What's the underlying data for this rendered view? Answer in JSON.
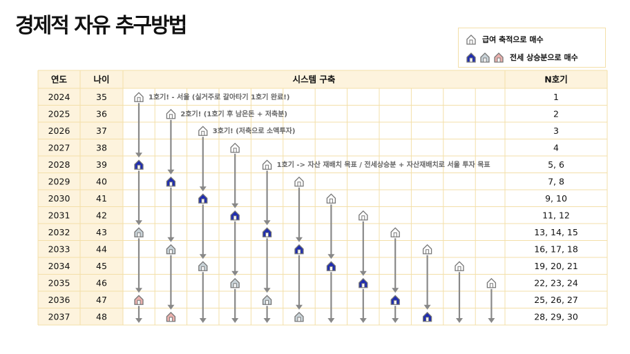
{
  "title": "경제적 자유 추구방법",
  "legend": {
    "salary_label": "급여 축적으로 매수",
    "equity_label": "전세 상승분으로 매수"
  },
  "table": {
    "headers": {
      "year": "연도",
      "age": "나이",
      "system": "시스템 구축",
      "count": "N호기"
    },
    "rows": [
      {
        "year": "2024",
        "age": "35",
        "count": "1"
      },
      {
        "year": "2025",
        "age": "36",
        "count": "2"
      },
      {
        "year": "2026",
        "age": "37",
        "count": "3"
      },
      {
        "year": "2027",
        "age": "38",
        "count": "4"
      },
      {
        "year": "2028",
        "age": "39",
        "count": "5, 6"
      },
      {
        "year": "2029",
        "age": "40",
        "count": "7, 8"
      },
      {
        "year": "2030",
        "age": "41",
        "count": "9, 10"
      },
      {
        "year": "2031",
        "age": "42",
        "count": "11, 12"
      },
      {
        "year": "2032",
        "age": "43",
        "count": "13, 14, 15"
      },
      {
        "year": "2033",
        "age": "44",
        "count": "16, 17, 18"
      },
      {
        "year": "2034",
        "age": "45",
        "count": "19, 20, 21"
      },
      {
        "year": "2035",
        "age": "46",
        "count": "22, 23, 24"
      },
      {
        "year": "2036",
        "age": "47",
        "count": "25, 26, 27"
      },
      {
        "year": "2037",
        "age": "48",
        "count": "28, 29, 30"
      }
    ]
  },
  "notes": [
    "1호기! - 서울 (실거주로 갈아타기 1호기 완료!)",
    "2호기! (1호기 후 남은돈 + 저축분)",
    "3호기! (저축으로 소액투자)",
    "1호기 -> 자산 재배치 목표 / 전세상승분 + 자산재배치로 서울 투자 목표"
  ],
  "timeline": [
    {
      "start": 0,
      "steps": [
        [
          "salary",
          0
        ],
        [
          "equity",
          4
        ],
        [
          "gray",
          8
        ],
        [
          "red",
          12
        ]
      ]
    },
    {
      "start": 1,
      "steps": [
        [
          "salary",
          1
        ],
        [
          "equity",
          5
        ],
        [
          "gray",
          9
        ],
        [
          "red",
          13
        ]
      ]
    },
    {
      "start": 2,
      "steps": [
        [
          "salary",
          2
        ],
        [
          "equity",
          6
        ],
        [
          "gray",
          10
        ]
      ]
    },
    {
      "start": 3,
      "steps": [
        [
          "salary",
          3
        ],
        [
          "equity",
          7
        ],
        [
          "gray",
          11
        ]
      ]
    },
    {
      "start": 4,
      "steps": [
        [
          "salary",
          4
        ],
        [
          "equity",
          8
        ],
        [
          "gray",
          12
        ]
      ]
    },
    {
      "start": 5,
      "steps": [
        [
          "salary",
          5
        ],
        [
          "equity",
          9
        ],
        [
          "gray",
          13
        ]
      ]
    },
    {
      "start": 6,
      "steps": [
        [
          "salary",
          6
        ],
        [
          "equity",
          10
        ]
      ]
    },
    {
      "start": 7,
      "steps": [
        [
          "salary",
          7
        ],
        [
          "equity",
          11
        ]
      ]
    },
    {
      "start": 8,
      "steps": [
        [
          "salary",
          8
        ],
        [
          "equity",
          12
        ]
      ]
    },
    {
      "start": 9,
      "steps": [
        [
          "salary",
          9
        ],
        [
          "equity",
          13
        ]
      ]
    },
    {
      "start": 10,
      "steps": [
        [
          "salary",
          10
        ]
      ]
    },
    {
      "start": 11,
      "steps": [
        [
          "salary",
          11
        ]
      ]
    }
  ],
  "colors": {
    "header_bg": "#fdf3dd",
    "grid_line": "#f3dfa8",
    "arrow": "#888888",
    "salary_house": "#ffffff",
    "equity_house": "#1f2db0",
    "gray_house": "#c9d3d8",
    "red_house": "#e9b0ad"
  }
}
